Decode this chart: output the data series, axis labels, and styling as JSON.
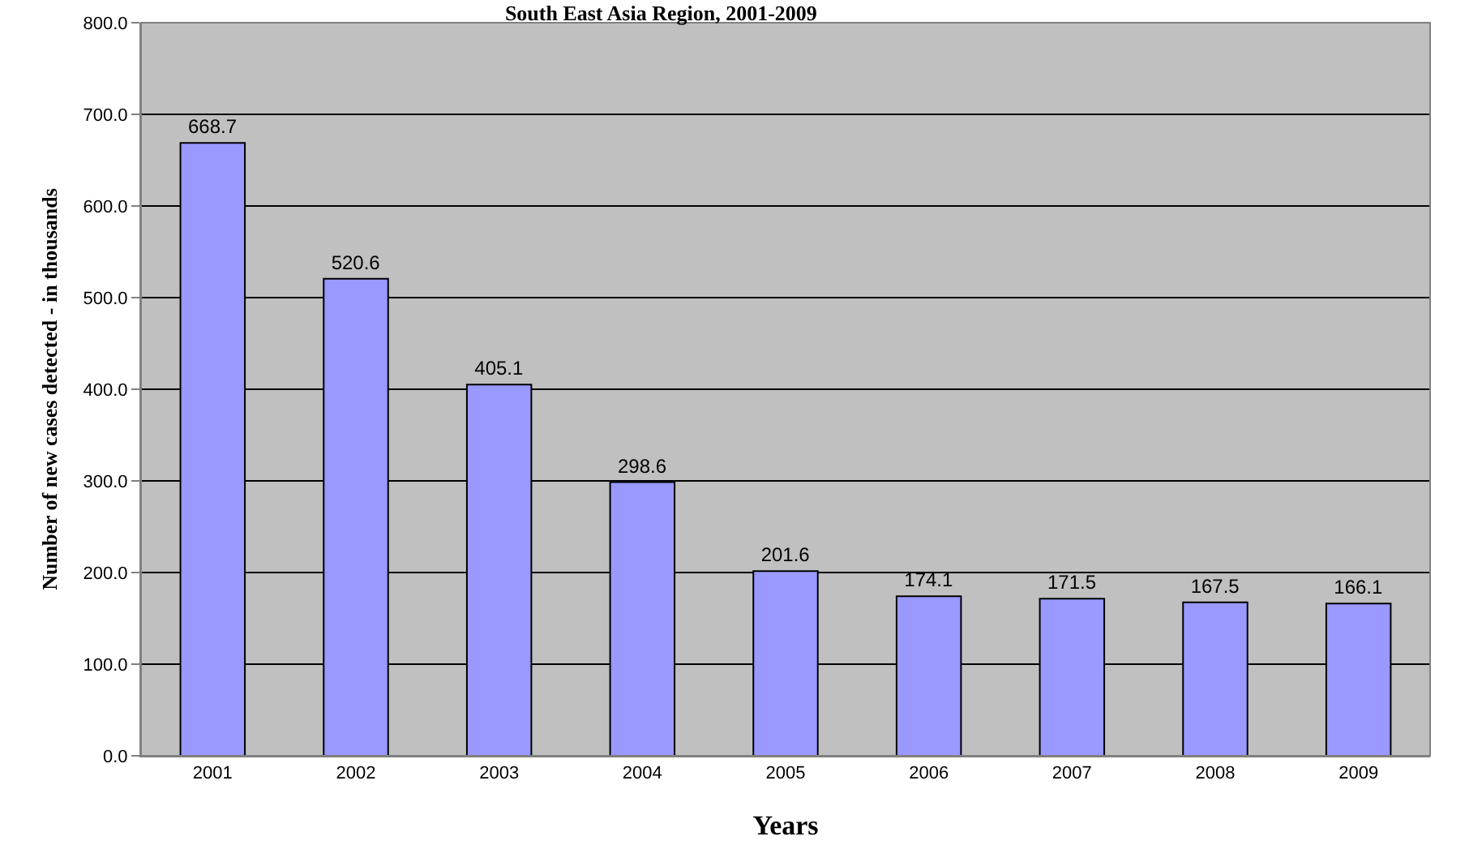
{
  "chart_data": {
    "type": "bar",
    "title": "South East Asia Region, 2001-2009",
    "xlabel": "Years",
    "ylabel": "Number of new cases detected - in thousands",
    "categories": [
      "2001",
      "2002",
      "2003",
      "2004",
      "2005",
      "2006",
      "2007",
      "2008",
      "2009"
    ],
    "values": [
      668.7,
      520.6,
      405.1,
      298.6,
      201.6,
      174.1,
      171.5,
      167.5,
      166.1
    ],
    "color": "#9999ff",
    "ylim": [
      0,
      800
    ],
    "yticks": [
      {
        "value": 0,
        "label": "0.0"
      },
      {
        "value": 100,
        "label": "100.0"
      },
      {
        "value": 200,
        "label": "200.0"
      },
      {
        "value": 300,
        "label": "300.0"
      },
      {
        "value": 400,
        "label": "400.0"
      },
      {
        "value": 500,
        "label": "500.0"
      },
      {
        "value": 600,
        "label": "600.0"
      },
      {
        "value": 700,
        "label": "700.0"
      },
      {
        "value": 800,
        "label": "800.0"
      }
    ],
    "grid": "y",
    "data_labels": true
  }
}
